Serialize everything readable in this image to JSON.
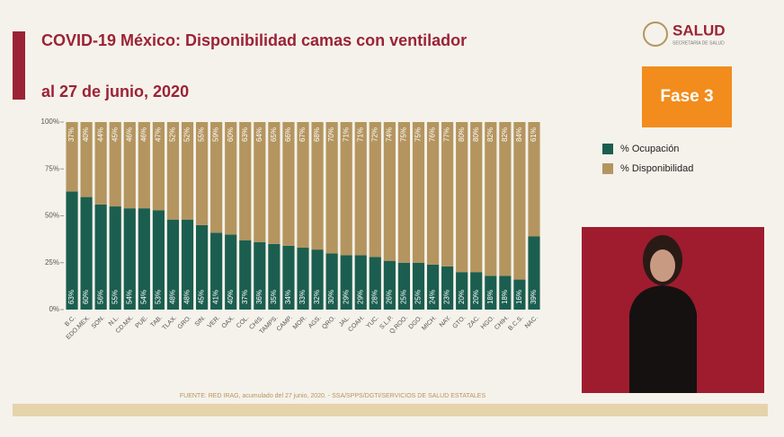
{
  "chart_data": {
    "type": "stacked-bar",
    "title": "COVID-19 México: Disponibilidad camas con ventilador",
    "subtitle": "al 27 de junio, 2020",
    "categories": [
      "B.C.",
      "EDO.MEX.",
      "SON.",
      "N.L.",
      "CD.MX.",
      "PUE.",
      "TAB.",
      "TLAX.",
      "GRO.",
      "SIN.",
      "VER.",
      "OAX.",
      "COL.",
      "CHIS.",
      "TAMPS.",
      "CAMP.",
      "MOR.",
      "AGS.",
      "QRO.",
      "JAL.",
      "COAH.",
      "YUC.",
      "S.L.P.",
      "Q.ROO.",
      "DGO.",
      "MICH.",
      "NAY.",
      "GTO.",
      "ZAC.",
      "HGO.",
      "CHIH.",
      "B.C.S.",
      "NAC."
    ],
    "series": [
      {
        "name": "% Ocupación",
        "color": "#1b5e4f",
        "values": [
          63,
          60,
          56,
          55,
          54,
          54,
          53,
          48,
          48,
          45,
          41,
          40,
          37,
          36,
          35,
          34,
          33,
          32,
          30,
          29,
          29,
          28,
          26,
          25,
          25,
          24,
          23,
          20,
          20,
          18,
          18,
          16,
          39
        ],
        "value_labels": [
          "63%",
          "60%",
          "56%",
          "55%",
          "54%",
          "54%",
          "53%",
          "48%",
          "48%",
          "45%",
          "41%",
          "40%",
          "37%",
          "36%",
          "35%",
          "34%",
          "33%",
          "32%",
          "30%",
          "29%",
          "29%",
          "28%",
          "26%",
          "25%",
          "25%",
          "24%",
          "23%",
          "20%",
          "20%",
          "18%",
          "18%",
          "16%",
          "39%"
        ]
      },
      {
        "name": "% Disponibilidad",
        "color": "#b4955f",
        "values": [
          37,
          40,
          44,
          45,
          46,
          46,
          47,
          52,
          52,
          55,
          59,
          60,
          63,
          64,
          65,
          66,
          67,
          68,
          70,
          71,
          71,
          72,
          74,
          75,
          75,
          76,
          77,
          80,
          80,
          82,
          82,
          84,
          61
        ],
        "value_labels": [
          "37%",
          "40%",
          "44%",
          "45%",
          "46%",
          "46%",
          "47%",
          "52%",
          "52%",
          "55%",
          "59%",
          "60%",
          "63%",
          "64%",
          "65%",
          "66%",
          "67%",
          "68%",
          "70%",
          "71%",
          "71%",
          "72%",
          "74%",
          "75%",
          "75%",
          "76%",
          "77%",
          "80%",
          "80%",
          "82%",
          "82%",
          "84%",
          "61%"
        ]
      }
    ],
    "ylim": [
      0,
      100
    ],
    "yticks": [
      {
        "value": 0,
        "label": "0%"
      },
      {
        "value": 25,
        "label": "25%"
      },
      {
        "value": 50,
        "label": "50%"
      },
      {
        "value": 75,
        "label": "75%"
      },
      {
        "value": 100,
        "label": "100%"
      }
    ]
  },
  "logo": {
    "name": "SALUD",
    "subtitle": "SECRETARÍA DE SALUD"
  },
  "badge": "Fase 3",
  "source": "FUENTE: RED IRAG, acumulado del 27 junio, 2020. - SSA/SPPS/DGTI/SERVICIOS DE SALUD ESTATALES"
}
